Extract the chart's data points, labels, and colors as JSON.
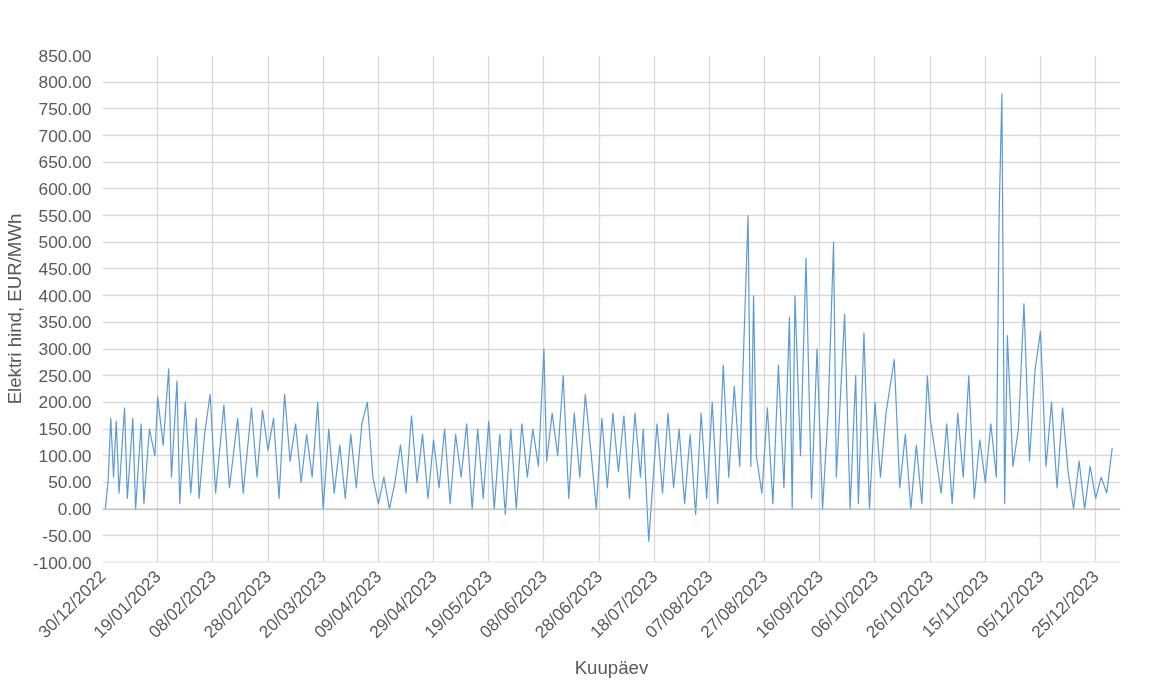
{
  "chart_data": {
    "type": "line",
    "xlabel": "Kuupäev",
    "ylabel": "Elektri hind, EUR/MWh",
    "xlim": [
      "2022-12-30",
      "2024-01-03"
    ],
    "xticks": [
      {
        "value": "2022-12-30",
        "label": "30/12/2022"
      },
      {
        "value": "2023-01-19",
        "label": "19/01/2023"
      },
      {
        "value": "2023-02-08",
        "label": "08/02/2023"
      },
      {
        "value": "2023-02-28",
        "label": "28/02/2023"
      },
      {
        "value": "2023-03-20",
        "label": "20/03/2023"
      },
      {
        "value": "2023-04-09",
        "label": "09/04/2023"
      },
      {
        "value": "2023-04-29",
        "label": "29/04/2023"
      },
      {
        "value": "2023-05-19",
        "label": "19/05/2023"
      },
      {
        "value": "2023-06-08",
        "label": "08/06/2023"
      },
      {
        "value": "2023-06-28",
        "label": "28/06/2023"
      },
      {
        "value": "2023-07-18",
        "label": "18/07/2023"
      },
      {
        "value": "2023-08-07",
        "label": "07/08/2023"
      },
      {
        "value": "2023-08-27",
        "label": "27/08/2023"
      },
      {
        "value": "2023-09-16",
        "label": "16/09/2023"
      },
      {
        "value": "2023-10-06",
        "label": "06/10/2023"
      },
      {
        "value": "2023-10-26",
        "label": "26/10/2023"
      },
      {
        "value": "2023-11-15",
        "label": "15/11/2023"
      },
      {
        "value": "2023-12-05",
        "label": "05/12/2023"
      },
      {
        "value": "2023-12-25",
        "label": "25/12/2023"
      }
    ],
    "ylim": [
      -100,
      850
    ],
    "yticks": [
      {
        "value": -100,
        "label": "-100.00"
      },
      {
        "value": -50,
        "label": "-50.00"
      },
      {
        "value": 0,
        "label": "0.00"
      },
      {
        "value": 50,
        "label": "50.00"
      },
      {
        "value": 100,
        "label": "100.00"
      },
      {
        "value": 150,
        "label": "150.00"
      },
      {
        "value": 200,
        "label": "200.00"
      },
      {
        "value": 250,
        "label": "250.00"
      },
      {
        "value": 300,
        "label": "300.00"
      },
      {
        "value": 350,
        "label": "350.00"
      },
      {
        "value": 400,
        "label": "400.00"
      },
      {
        "value": 450,
        "label": "450.00"
      },
      {
        "value": 500,
        "label": "500.00"
      },
      {
        "value": 550,
        "label": "550.00"
      },
      {
        "value": 600,
        "label": "600.00"
      },
      {
        "value": 650,
        "label": "650.00"
      },
      {
        "value": 700,
        "label": "700.00"
      },
      {
        "value": 750,
        "label": "750.00"
      },
      {
        "value": 800,
        "label": "800.00"
      },
      {
        "value": 850,
        "label": "850.00"
      }
    ],
    "grid": true,
    "line_style": "solid",
    "marker": "none",
    "series": [
      {
        "color": "#5b9bd5",
        "x": [
          "2022-12-31",
          "2023-01-01",
          "2023-01-02",
          "2023-01-03",
          "2023-01-04",
          "2023-01-05",
          "2023-01-07",
          "2023-01-08",
          "2023-01-10",
          "2023-01-11",
          "2023-01-13",
          "2023-01-14",
          "2023-01-16",
          "2023-01-18",
          "2023-01-19",
          "2023-01-21",
          "2023-01-23",
          "2023-01-24",
          "2023-01-26",
          "2023-01-27",
          "2023-01-29",
          "2023-01-31",
          "2023-02-02",
          "2023-02-03",
          "2023-02-05",
          "2023-02-07",
          "2023-02-09",
          "2023-02-12",
          "2023-02-14",
          "2023-02-17",
          "2023-02-19",
          "2023-02-22",
          "2023-02-24",
          "2023-02-26",
          "2023-02-28",
          "2023-03-02",
          "2023-03-04",
          "2023-03-06",
          "2023-03-08",
          "2023-03-10",
          "2023-03-12",
          "2023-03-14",
          "2023-03-16",
          "2023-03-18",
          "2023-03-20",
          "2023-03-22",
          "2023-03-24",
          "2023-03-26",
          "2023-03-28",
          "2023-03-30",
          "2023-04-01",
          "2023-04-03",
          "2023-04-05",
          "2023-04-07",
          "2023-04-09",
          "2023-04-11",
          "2023-04-13",
          "2023-04-15",
          "2023-04-17",
          "2023-04-19",
          "2023-04-21",
          "2023-04-23",
          "2023-04-25",
          "2023-04-27",
          "2023-04-29",
          "2023-05-01",
          "2023-05-03",
          "2023-05-05",
          "2023-05-07",
          "2023-05-09",
          "2023-05-11",
          "2023-05-13",
          "2023-05-15",
          "2023-05-17",
          "2023-05-19",
          "2023-05-21",
          "2023-05-23",
          "2023-05-25",
          "2023-05-27",
          "2023-05-29",
          "2023-05-31",
          "2023-06-02",
          "2023-06-04",
          "2023-06-06",
          "2023-06-08",
          "2023-06-09",
          "2023-06-11",
          "2023-06-13",
          "2023-06-15",
          "2023-06-17",
          "2023-06-19",
          "2023-06-21",
          "2023-06-23",
          "2023-06-25",
          "2023-06-27",
          "2023-06-29",
          "2023-07-01",
          "2023-07-03",
          "2023-07-05",
          "2023-07-07",
          "2023-07-09",
          "2023-07-11",
          "2023-07-13",
          "2023-07-14",
          "2023-07-16",
          "2023-07-19",
          "2023-07-21",
          "2023-07-23",
          "2023-07-25",
          "2023-07-27",
          "2023-07-29",
          "2023-07-31",
          "2023-08-02",
          "2023-08-04",
          "2023-08-06",
          "2023-08-08",
          "2023-08-10",
          "2023-08-12",
          "2023-08-14",
          "2023-08-16",
          "2023-08-18",
          "2023-08-21",
          "2023-08-22",
          "2023-08-23",
          "2023-08-24",
          "2023-08-26",
          "2023-08-28",
          "2023-08-30",
          "2023-09-01",
          "2023-09-03",
          "2023-09-05",
          "2023-09-06",
          "2023-09-07",
          "2023-09-09",
          "2023-09-11",
          "2023-09-13",
          "2023-09-15",
          "2023-09-17",
          "2023-09-19",
          "2023-09-21",
          "2023-09-22",
          "2023-09-25",
          "2023-09-27",
          "2023-09-29",
          "2023-09-30",
          "2023-10-02",
          "2023-10-04",
          "2023-10-06",
          "2023-10-08",
          "2023-10-10",
          "2023-10-13",
          "2023-10-15",
          "2023-10-17",
          "2023-10-19",
          "2023-10-21",
          "2023-10-23",
          "2023-10-25",
          "2023-10-26",
          "2023-10-30",
          "2023-11-01",
          "2023-11-03",
          "2023-11-05",
          "2023-11-07",
          "2023-11-09",
          "2023-11-11",
          "2023-11-13",
          "2023-11-15",
          "2023-11-17",
          "2023-11-19",
          "2023-11-20",
          "2023-11-21",
          "2023-11-22",
          "2023-11-23",
          "2023-11-25",
          "2023-11-27",
          "2023-11-29",
          "2023-12-01",
          "2023-12-03",
          "2023-12-05",
          "2023-12-07",
          "2023-12-09",
          "2023-12-11",
          "2023-12-13",
          "2023-12-15",
          "2023-12-17",
          "2023-12-19",
          "2023-12-21",
          "2023-12-23",
          "2023-12-25",
          "2023-12-27",
          "2023-12-29",
          "2023-12-31"
        ],
        "values": [
          0,
          50,
          170,
          60,
          165,
          30,
          190,
          20,
          170,
          0,
          160,
          10,
          150,
          100,
          210,
          120,
          263,
          60,
          240,
          10,
          200,
          30,
          170,
          20,
          140,
          215,
          30,
          195,
          40,
          170,
          30,
          190,
          60,
          185,
          110,
          170,
          20,
          215,
          90,
          160,
          50,
          140,
          60,
          200,
          0,
          150,
          30,
          120,
          20,
          140,
          40,
          160,
          200,
          60,
          10,
          60,
          0,
          50,
          120,
          30,
          175,
          50,
          140,
          20,
          130,
          40,
          150,
          10,
          140,
          60,
          160,
          0,
          150,
          20,
          165,
          0,
          140,
          -10,
          150,
          0,
          160,
          60,
          150,
          80,
          300,
          90,
          180,
          100,
          250,
          20,
          180,
          60,
          215,
          110,
          0,
          170,
          40,
          180,
          70,
          175,
          20,
          180,
          60,
          150,
          -60,
          160,
          30,
          180,
          40,
          150,
          10,
          140,
          -10,
          180,
          20,
          200,
          10,
          270,
          60,
          230,
          80,
          550,
          80,
          400,
          100,
          30,
          190,
          10,
          270,
          40,
          360,
          0,
          400,
          100,
          470,
          20,
          300,
          0,
          180,
          500,
          60,
          365,
          0,
          250,
          10,
          330,
          0,
          200,
          60,
          180,
          280,
          40,
          140,
          0,
          120,
          10,
          250,
          170,
          30,
          160,
          10,
          180,
          60,
          250,
          20,
          130,
          50,
          160,
          60,
          550,
          778,
          10,
          325,
          80,
          150,
          385,
          90,
          260,
          333,
          80,
          200,
          40,
          190,
          70,
          0,
          90,
          0,
          80,
          20,
          60,
          30,
          115
        ]
      }
    ]
  }
}
